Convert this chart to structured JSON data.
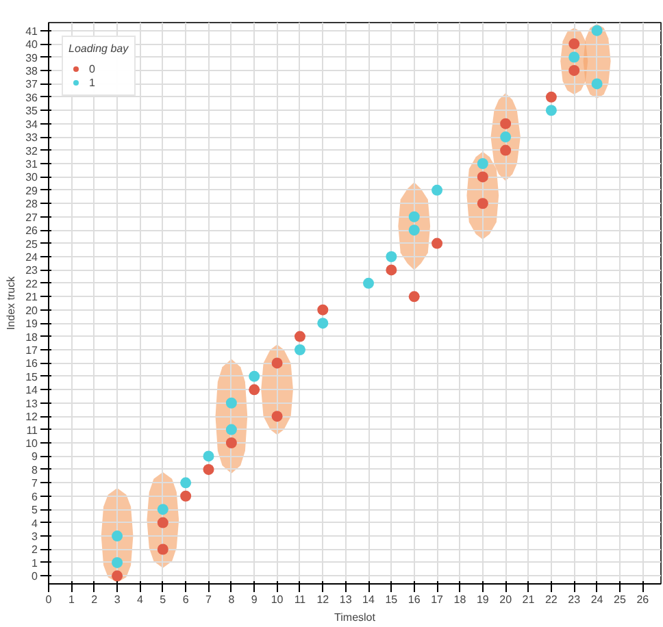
{
  "chart_data": {
    "type": "scatter",
    "xlabel": "Timeslot",
    "ylabel": "Index truck",
    "legend_title": "Loading bay",
    "legend": "top left",
    "grid": true,
    "marker": "circle",
    "xlim": [
      0,
      26.8
    ],
    "xticks": [
      0,
      1,
      2,
      3,
      4,
      5,
      6,
      7,
      8,
      9,
      10,
      11,
      12,
      13,
      14,
      15,
      16,
      17,
      18,
      19,
      20,
      21,
      22,
      23,
      24,
      25,
      26
    ],
    "ylim": [
      -0.6,
      41.6
    ],
    "yticks": [
      0,
      1,
      2,
      3,
      4,
      5,
      6,
      7,
      8,
      9,
      10,
      11,
      12,
      13,
      14,
      15,
      16,
      17,
      18,
      19,
      20,
      21,
      22,
      23,
      24,
      25,
      26,
      27,
      28,
      29,
      30,
      31,
      32,
      33,
      34,
      35,
      36,
      37,
      38,
      39,
      40,
      41
    ],
    "series": [
      {
        "type": "area",
        "marker": "none",
        "color": "#f4a46c",
        "x": [
          2.3,
          2.4,
          2.6,
          3,
          3.4,
          3.6,
          3.7,
          3.6,
          3.4,
          3,
          2.6,
          2.4
        ],
        "values": [
          3,
          5.2,
          6.1,
          6.6,
          6.1,
          5.2,
          3,
          0.8,
          -0.1,
          -0.5,
          -0.1,
          0.8
        ]
      },
      {
        "type": "area",
        "marker": "none",
        "color": "#f4a46c",
        "x": [
          4.3,
          4.4,
          4.6,
          5,
          5.4,
          5.6,
          5.7,
          5.6,
          5.4,
          5,
          4.6,
          4.4
        ],
        "values": [
          4.2,
          6.3,
          7.3,
          7.8,
          7.3,
          6.3,
          4.2,
          2.1,
          1.1,
          0.6,
          1.1,
          2.1
        ]
      },
      {
        "type": "area",
        "marker": "none",
        "color": "#f4a46c",
        "x": [
          7.3,
          7.4,
          7.6,
          8,
          8.4,
          8.6,
          8.7,
          8.6,
          8.4,
          8,
          7.6,
          7.4
        ],
        "values": [
          12,
          14.6,
          15.7,
          16.3,
          15.7,
          14.6,
          12,
          9.4,
          8.3,
          7.7,
          8.3,
          9.4
        ]
      },
      {
        "type": "area",
        "marker": "none",
        "color": "#f4a46c",
        "x": [
          9.3,
          9.4,
          9.7,
          10,
          10.3,
          10.6,
          10.7,
          10.6,
          10.3,
          10,
          9.7,
          9.4
        ],
        "values": [
          14,
          16,
          17,
          17.4,
          17,
          16,
          14,
          12,
          11,
          10.6,
          11,
          12
        ]
      },
      {
        "type": "area",
        "marker": "none",
        "color": "#f4a46c",
        "x": [
          15.3,
          15.4,
          15.7,
          16,
          16.3,
          16.6,
          16.7,
          16.6,
          16.3,
          16,
          15.7,
          15.4
        ],
        "values": [
          26.3,
          28.3,
          29.1,
          29.6,
          29.1,
          28.3,
          26.3,
          24.3,
          23.5,
          23,
          23.5,
          24.3
        ]
      },
      {
        "type": "area",
        "marker": "none",
        "color": "#f4a46c",
        "x": [
          18.3,
          18.4,
          18.7,
          19,
          19.3,
          19.6,
          19.7,
          19.6,
          19.3,
          19,
          18.7,
          18.4
        ],
        "values": [
          28.6,
          30.6,
          31.5,
          31.9,
          31.5,
          30.6,
          28.6,
          26.6,
          25.7,
          25.3,
          25.7,
          26.6
        ]
      },
      {
        "type": "area",
        "marker": "none",
        "color": "#f4a46c",
        "x": [
          19.35,
          19.5,
          19.7,
          20,
          20.3,
          20.5,
          20.65,
          20.5,
          20.3,
          20,
          19.7,
          19.5
        ],
        "values": [
          33,
          35,
          35.8,
          36.3,
          35.8,
          35,
          33,
          31,
          30.2,
          29.7,
          30.2,
          31
        ]
      },
      {
        "type": "area",
        "marker": "none",
        "color": "#f4a46c",
        "x": [
          22.4,
          22.5,
          22.7,
          23,
          23.3,
          23.5,
          23.6,
          23.5,
          23.3,
          23,
          22.7,
          22.5
        ],
        "values": [
          38.7,
          40.2,
          40.9,
          41.2,
          40.9,
          40.2,
          38.7,
          37.2,
          36.5,
          36.2,
          36.5,
          37.2
        ]
      },
      {
        "type": "area",
        "marker": "none",
        "color": "#f4a46c",
        "x": [
          23.4,
          23.5,
          23.7,
          24,
          24.3,
          24.5,
          24.6,
          24.5,
          24.3,
          24,
          23.7,
          23.5
        ],
        "values": [
          38.7,
          40.4,
          41.2,
          41.5,
          41.2,
          40.4,
          38.7,
          37,
          36.2,
          35.9,
          36.2,
          37
        ]
      },
      {
        "name": "0",
        "color": "#e05a47",
        "x": [
          3,
          5,
          5,
          6,
          7,
          8,
          9,
          10,
          10,
          11,
          12,
          15,
          16,
          17,
          19,
          19,
          20,
          20,
          22,
          23,
          23
        ],
        "values": [
          0,
          2,
          4,
          6,
          8,
          10,
          14,
          12,
          16,
          18,
          20,
          23,
          21,
          25,
          28,
          30,
          32,
          34,
          36,
          38,
          40
        ]
      },
      {
        "name": "1",
        "color": "#4dd0dc",
        "x": [
          3,
          3,
          5,
          6,
          7,
          8,
          8,
          9,
          11,
          12,
          14,
          15,
          16,
          16,
          17,
          19,
          20,
          22,
          23,
          24,
          24
        ],
        "values": [
          1,
          3,
          5,
          7,
          9,
          11,
          13,
          15,
          17,
          19,
          22,
          24,
          26,
          27,
          29,
          31,
          33,
          35,
          39,
          37,
          41
        ]
      }
    ]
  }
}
